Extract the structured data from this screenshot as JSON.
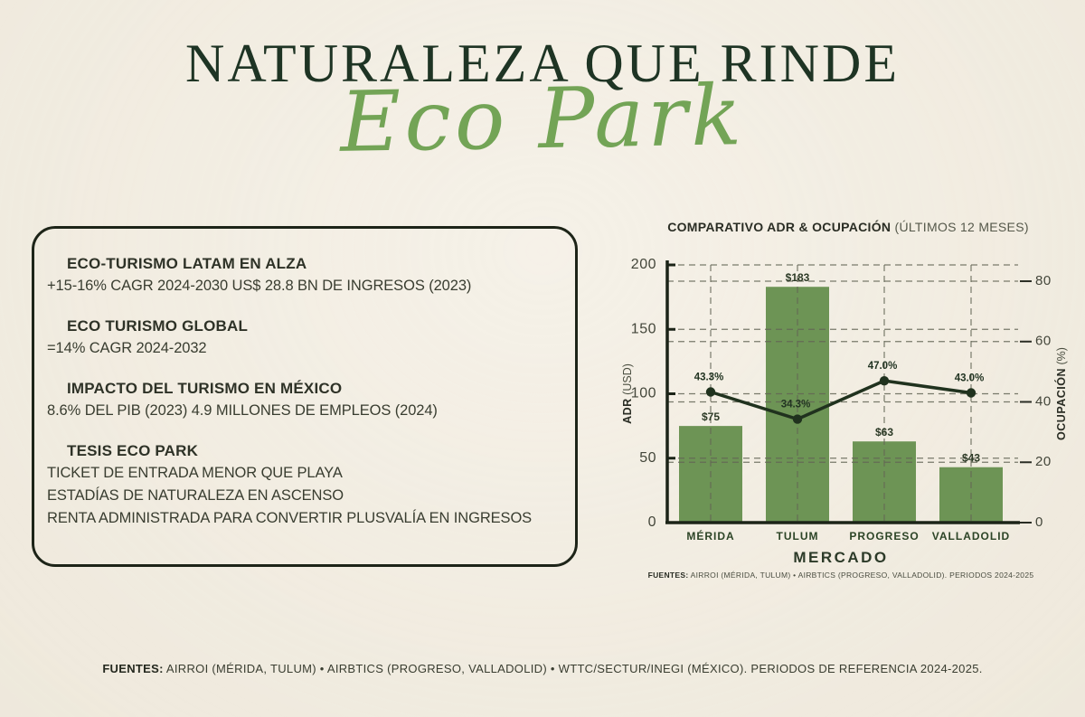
{
  "colors": {
    "background": "#f2ecdf",
    "title_green": "#1e3424",
    "script_green": "#73a456",
    "bar_green": "#6d9455",
    "line_dark": "#20321e",
    "ink": "#34382c",
    "grid": "#636656"
  },
  "page": {
    "title": "NATURALEZA QUE RINDE",
    "subtitle_script": "Eco Park",
    "footer": {
      "label": "FUENTES:",
      "text": " AIRROI (MÉRIDA, TULUM) • AIRBTICS (PROGRESO, VALLADOLID) • WTTC/SECTUR/INEGI (MÉXICO). PERIODOS DE REFERENCIA 2024-2025."
    }
  },
  "info_box": {
    "sections": [
      {
        "heading": "ECO-TURISMO LATAM EN ALZA",
        "lines": [
          "+15-16% CAGR 2024-2030 US$ 28.8 BN DE INGRESOS (2023)"
        ]
      },
      {
        "heading": "ECO TURISMO GLOBAL",
        "lines": [
          "=14% CAGR 2024-2032"
        ]
      },
      {
        "heading": "IMPACTO DEL TURISMO EN MÉXICO",
        "lines": [
          "8.6% DEL PIB (2023) 4.9 MILLONES DE EMPLEOS (2024)"
        ]
      },
      {
        "heading": "TESIS ECO PARK",
        "lines": [
          "TICKET DE ENTRADA MENOR QUE PLAYA",
          "ESTADÍAS DE NATURALEZA EN ASCENSO",
          "RENTA ADMINISTRADA PARA CONVERTIR PLUSVALÍA EN INGRESOS"
        ]
      }
    ]
  },
  "chart_data": {
    "type": "bar+line",
    "title_bold": "COMPARATIVO ADR & OCUPACIÓN",
    "title_light": "(ÚLTIMOS 12 MESES)",
    "categories": [
      "MÉRIDA",
      "TULUM",
      "PROGRESO",
      "VALLADOLID"
    ],
    "series": [
      {
        "name": "ADR",
        "type": "bar",
        "axis": "left",
        "values": [
          75,
          183,
          63,
          43
        ],
        "labels": [
          "$75",
          "$183",
          "$63",
          "$43"
        ],
        "color": "#6d9455"
      },
      {
        "name": "OCUPACIÓN",
        "type": "line",
        "axis": "right",
        "values": [
          43.3,
          34.3,
          47.0,
          43.0
        ],
        "labels": [
          "43.3%",
          "34.3%",
          "47.0%",
          "43.0%"
        ],
        "color": "#20321e"
      }
    ],
    "left_axis": {
      "label_bold": "ADR",
      "label_light": "(USD)",
      "ticks": [
        0,
        50,
        100,
        150,
        200
      ],
      "min": 0,
      "max": 200
    },
    "right_axis": {
      "label_bold": "OCUPACIÓN",
      "label_light": "(%)",
      "ticks": [
        0,
        20,
        40,
        60,
        80
      ],
      "min": 0,
      "max": 85.4
    },
    "xlabel": "MERCADO",
    "grid": "dashed",
    "source": {
      "label": "FUENTES:",
      "text": " AIRROI (MÉRIDA, TULUM) • AIRBTICS (PROGRESO, VALLADOLID). PERIODOS 2024-2025"
    }
  }
}
